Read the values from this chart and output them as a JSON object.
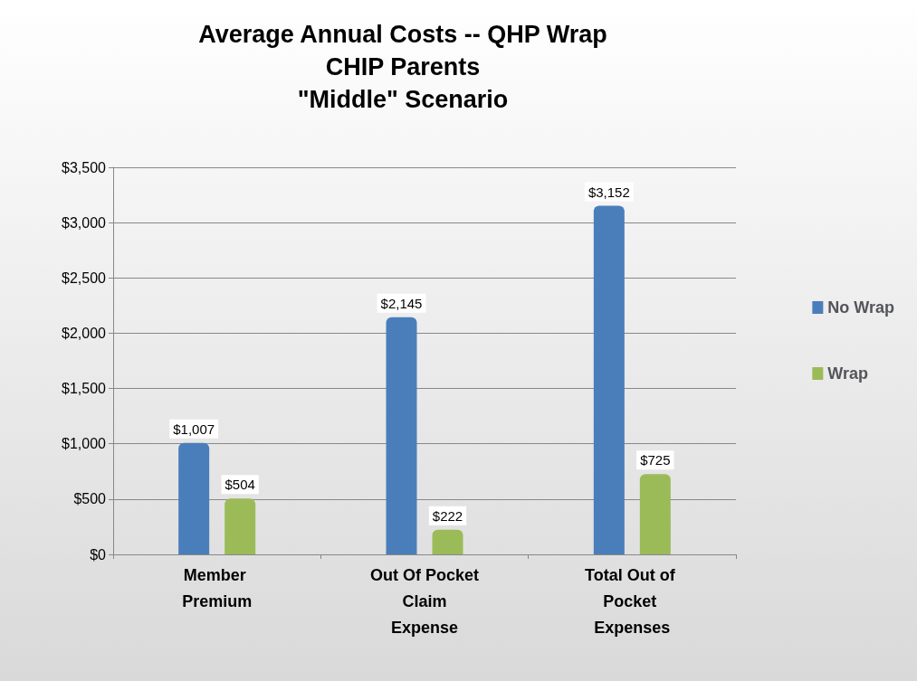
{
  "chart_data": {
    "type": "bar",
    "title": "Average Annual Costs -- QHP Wrap\nCHIP Parents\n\"Middle\" Scenario",
    "categories": [
      "Member Premium",
      "Out Of Pocket Claim Expense",
      "Total Out of Pocket Expenses"
    ],
    "series": [
      {
        "name": "No Wrap",
        "color": "#4a7ebb",
        "values": [
          1007,
          2145,
          3152
        ],
        "value_labels": [
          "$1,007",
          "$2,145",
          "$3,152"
        ]
      },
      {
        "name": "Wrap",
        "color": "#9bbb59",
        "values": [
          504,
          222,
          725
        ],
        "value_labels": [
          "$504",
          "$222",
          "$725"
        ]
      }
    ],
    "ylim": [
      0,
      3500
    ],
    "yticks": [
      {
        "value": 0,
        "label": "$0"
      },
      {
        "value": 500,
        "label": "$500"
      },
      {
        "value": 1000,
        "label": "$1,000"
      },
      {
        "value": 1500,
        "label": "$1,500"
      },
      {
        "value": 2000,
        "label": "$2,000"
      },
      {
        "value": 2500,
        "label": "$2,500"
      },
      {
        "value": 3000,
        "label": "$3,000"
      },
      {
        "value": 3500,
        "label": "$3,500"
      }
    ],
    "grid": "y",
    "legend": "right"
  }
}
